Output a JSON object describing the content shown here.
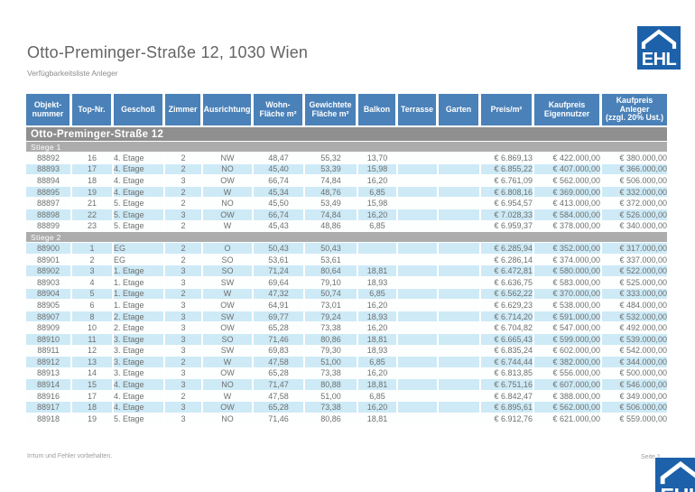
{
  "header": {
    "title": "Otto-Preminger-Straße 12, 1030 Wien",
    "subtitle": "Verfügbarkeitsliste Anleger"
  },
  "logo": {
    "text": "EHL"
  },
  "colors": {
    "header_blue": "#4a81b8",
    "building_bar_gray": "#8f8f8f",
    "stiege_bar_gray": "#acacac",
    "row_stripe_blue": "#cdeaf6",
    "logo_blue": "#1c61a9"
  },
  "table": {
    "building_header": "Otto-Preminger-Straße 12",
    "columns": [
      {
        "key": "objektnummer",
        "label": "Objekt-\nnummer",
        "align": "c"
      },
      {
        "key": "top-nr",
        "label": "Top-Nr.",
        "align": "c"
      },
      {
        "key": "geschoss",
        "label": "Geschoß",
        "align": "l"
      },
      {
        "key": "zimmer",
        "label": "Zimmer",
        "align": "c"
      },
      {
        "key": "ausrichtung",
        "label": "Ausrichtung",
        "align": "c"
      },
      {
        "key": "wohnflaeche",
        "label": "Wohn-\nFläche m²",
        "align": "c"
      },
      {
        "key": "gewichtete-flaeche",
        "label": "Gewichtete\nFläche m²",
        "align": "c"
      },
      {
        "key": "balkon",
        "label": "Balkon",
        "align": "c"
      },
      {
        "key": "terrasse",
        "label": "Terrasse",
        "align": "c"
      },
      {
        "key": "garten",
        "label": "Garten",
        "align": "c"
      },
      {
        "key": "preis-m2",
        "label": "Preis/m²",
        "align": "r"
      },
      {
        "key": "kaufpreis-eigennutzer",
        "label": "Kaufpreis\nEigennutzer",
        "align": "r"
      },
      {
        "key": "kaufpreis-anleger",
        "label": "Kaufpreis\nAnleger\n(zzgl. 20% Ust.)",
        "align": "r"
      }
    ],
    "sections": [
      {
        "name": "Stiege 1",
        "rows": [
          [
            "88892",
            "16",
            "4. Etage",
            "2",
            "NW",
            "48,47",
            "55,32",
            "13,70",
            "",
            "",
            "€ 6.869,13",
            "€ 422.000,00",
            "€ 380.000,00"
          ],
          [
            "88893",
            "17",
            "4. Etage",
            "2",
            "NO",
            "45,40",
            "53,39",
            "15,98",
            "",
            "",
            "€ 6.855,22",
            "€ 407.000,00",
            "€ 366.000,00"
          ],
          [
            "88894",
            "18",
            "4. Etage",
            "3",
            "OW",
            "66,74",
            "74,84",
            "16,20",
            "",
            "",
            "€ 6.761,09",
            "€ 562.000,00",
            "€ 506.000,00"
          ],
          [
            "88895",
            "19",
            "4. Etage",
            "2",
            "W",
            "45,34",
            "48,76",
            "6,85",
            "",
            "",
            "€ 6.808,16",
            "€ 369.000,00",
            "€ 332.000,00"
          ],
          [
            "88897",
            "21",
            "5. Etage",
            "2",
            "NO",
            "45,50",
            "53,49",
            "15,98",
            "",
            "",
            "€ 6.954,57",
            "€ 413.000,00",
            "€ 372.000,00"
          ],
          [
            "88898",
            "22",
            "5. Etage",
            "3",
            "OW",
            "66,74",
            "74,84",
            "16,20",
            "",
            "",
            "€ 7.028,33",
            "€ 584.000,00",
            "€ 526.000,00"
          ],
          [
            "88899",
            "23",
            "5. Etage",
            "2",
            "W",
            "45,43",
            "48,86",
            "6,85",
            "",
            "",
            "€ 6.959,37",
            "€ 378.000,00",
            "€ 340.000,00"
          ]
        ]
      },
      {
        "name": "Stiege 2",
        "rows": [
          [
            "88900",
            "1",
            "EG",
            "2",
            "O",
            "50,43",
            "50,43",
            "",
            "",
            "",
            "€ 6.285,94",
            "€ 352.000,00",
            "€ 317.000,00"
          ],
          [
            "88901",
            "2",
            "EG",
            "2",
            "SO",
            "53,61",
            "53,61",
            "",
            "",
            "",
            "€ 6.286,14",
            "€ 374.000,00",
            "€ 337.000,00"
          ],
          [
            "88902",
            "3",
            "1. Etage",
            "3",
            "SO",
            "71,24",
            "80,64",
            "18,81",
            "",
            "",
            "€ 6.472,81",
            "€ 580.000,00",
            "€ 522.000,00"
          ],
          [
            "88903",
            "4",
            "1. Etage",
            "3",
            "SW",
            "69,64",
            "79,10",
            "18,93",
            "",
            "",
            "€ 6.636,75",
            "€ 583.000,00",
            "€ 525.000,00"
          ],
          [
            "88904",
            "5",
            "1. Etage",
            "2",
            "W",
            "47,32",
            "50,74",
            "6,85",
            "",
            "",
            "€ 6.562,22",
            "€ 370.000,00",
            "€ 333.000,00"
          ],
          [
            "88905",
            "6",
            "1. Etage",
            "3",
            "OW",
            "64,91",
            "73,01",
            "16,20",
            "",
            "",
            "€ 6.629,23",
            "€ 538.000,00",
            "€ 484.000,00"
          ],
          [
            "88907",
            "8",
            "2. Etage",
            "3",
            "SW",
            "69,77",
            "79,24",
            "18,93",
            "",
            "",
            "€ 6.714,20",
            "€ 591.000,00",
            "€ 532.000,00"
          ],
          [
            "88909",
            "10",
            "2. Etage",
            "3",
            "OW",
            "65,28",
            "73,38",
            "16,20",
            "",
            "",
            "€ 6.704,82",
            "€ 547.000,00",
            "€ 492.000,00"
          ],
          [
            "88910",
            "11",
            "3. Etage",
            "3",
            "SO",
            "71,46",
            "80,86",
            "18,81",
            "",
            "",
            "€ 6.665,43",
            "€ 599.000,00",
            "€ 539.000,00"
          ],
          [
            "88911",
            "12",
            "3. Etage",
            "3",
            "SW",
            "69,83",
            "79,30",
            "18,93",
            "",
            "",
            "€ 6.835,24",
            "€ 602.000,00",
            "€ 542.000,00"
          ],
          [
            "88912",
            "13",
            "3. Etage",
            "2",
            "W",
            "47,58",
            "51,00",
            "6,85",
            "",
            "",
            "€ 6.744,44",
            "€ 382.000,00",
            "€ 344.000,00"
          ],
          [
            "88913",
            "14",
            "3. Etage",
            "3",
            "OW",
            "65,28",
            "73,38",
            "16,20",
            "",
            "",
            "€ 6.813,85",
            "€ 556.000,00",
            "€ 500.000,00"
          ],
          [
            "88914",
            "15",
            "4. Etage",
            "3",
            "NO",
            "71,47",
            "80,88",
            "18,81",
            "",
            "",
            "€ 6.751,16",
            "€ 607.000,00",
            "€ 546.000,00"
          ],
          [
            "88916",
            "17",
            "4. Etage",
            "2",
            "W",
            "47,58",
            "51,00",
            "6,85",
            "",
            "",
            "€ 6.842,47",
            "€ 388.000,00",
            "€ 349.000,00"
          ],
          [
            "88917",
            "18",
            "4. Etage",
            "3",
            "OW",
            "65,28",
            "73,38",
            "16,20",
            "",
            "",
            "€ 6.895,61",
            "€ 562.000,00",
            "€ 506.000,00"
          ],
          [
            "88918",
            "19",
            "5. Etage",
            "3",
            "NO",
            "71,46",
            "80,86",
            "18,81",
            "",
            "",
            "€ 6.912,76",
            "€ 621.000,00",
            "€ 559.000,00"
          ]
        ]
      }
    ]
  },
  "footer": {
    "disclaimer": "Irrtum und Fehler vorbehalten.",
    "page_label": "Seite 1"
  }
}
